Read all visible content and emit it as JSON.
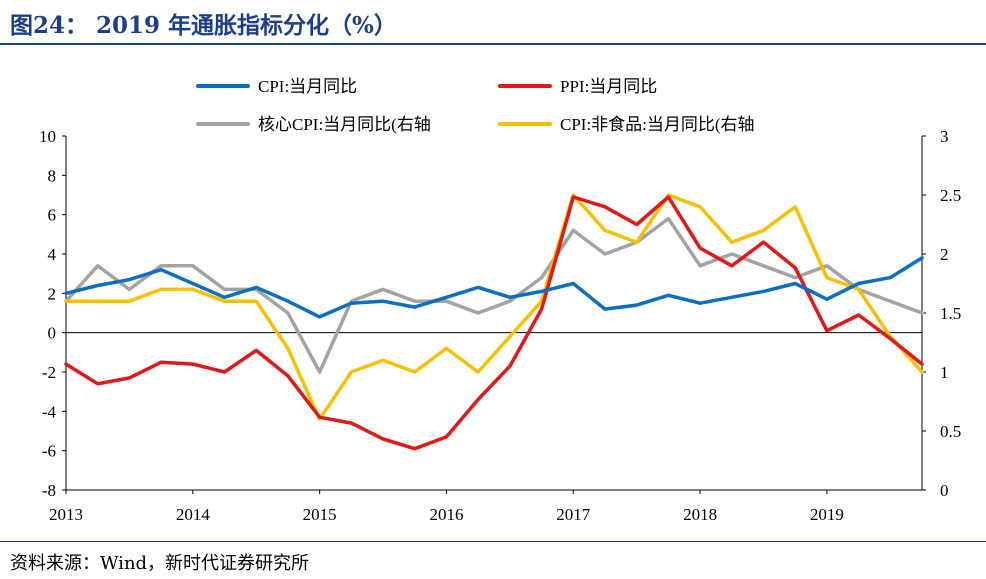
{
  "title": "图24： 2019 年通胀指标分化（%）",
  "source": "资料来源：Wind，新时代证券研究所",
  "colors": {
    "cpi": "#0a6fc2",
    "ppi": "#e31717",
    "core_cpi": "#a3a3a3",
    "cpi_nonfood": "#f8c000",
    "title": "#1d3f8a"
  },
  "chart_data": {
    "type": "line",
    "x_ticks": [
      "2013",
      "2014",
      "2015",
      "2016",
      "2017",
      "2018",
      "2019"
    ],
    "xlim": [
      "2013-01",
      "2019-10"
    ],
    "y_left": {
      "lim": [
        -8,
        10
      ],
      "ticks": [
        "-8",
        "-6",
        "-4",
        "-2",
        "0",
        "2",
        "4",
        "6",
        "8",
        "10"
      ]
    },
    "y_right": {
      "lim": [
        0,
        3
      ],
      "ticks": [
        "0",
        "0.5",
        "1",
        "1.5",
        "2",
        "2.5",
        "3"
      ]
    },
    "legend_position": "top",
    "series": [
      {
        "name": "CPI:当月同比",
        "axis": "left",
        "color_key": "cpi",
        "x": [
          "2013-01",
          "2013-04",
          "2013-07",
          "2013-10",
          "2014-01",
          "2014-04",
          "2014-07",
          "2014-10",
          "2015-01",
          "2015-04",
          "2015-07",
          "2015-10",
          "2016-01",
          "2016-04",
          "2016-07",
          "2016-10",
          "2017-01",
          "2017-04",
          "2017-07",
          "2017-10",
          "2018-01",
          "2018-04",
          "2018-07",
          "2018-10",
          "2019-01",
          "2019-04",
          "2019-07",
          "2019-10"
        ],
        "values": [
          2.0,
          2.4,
          2.7,
          3.2,
          2.5,
          1.8,
          2.3,
          1.6,
          0.8,
          1.5,
          1.6,
          1.3,
          1.8,
          2.3,
          1.8,
          2.1,
          2.5,
          1.2,
          1.4,
          1.9,
          1.5,
          1.8,
          2.1,
          2.5,
          1.7,
          2.5,
          2.8,
          3.8
        ]
      },
      {
        "name": "PPI:当月同比",
        "axis": "left",
        "color_key": "ppi",
        "x": [
          "2013-01",
          "2013-04",
          "2013-07",
          "2013-10",
          "2014-01",
          "2014-04",
          "2014-07",
          "2014-10",
          "2015-01",
          "2015-04",
          "2015-07",
          "2015-10",
          "2016-01",
          "2016-04",
          "2016-07",
          "2016-10",
          "2017-01",
          "2017-04",
          "2017-07",
          "2017-10",
          "2018-01",
          "2018-04",
          "2018-07",
          "2018-10",
          "2019-01",
          "2019-04",
          "2019-07",
          "2019-10"
        ],
        "values": [
          -1.6,
          -2.6,
          -2.3,
          -1.5,
          -1.6,
          -2.0,
          -0.9,
          -2.2,
          -4.3,
          -4.6,
          -5.4,
          -5.9,
          -5.3,
          -3.4,
          -1.7,
          1.2,
          6.9,
          6.4,
          5.5,
          6.9,
          4.3,
          3.4,
          4.6,
          3.3,
          0.1,
          0.9,
          -0.3,
          -1.6
        ]
      },
      {
        "name": "核心CPI:当月同比(右轴",
        "axis": "right",
        "color_key": "core_cpi",
        "x": [
          "2013-01",
          "2013-04",
          "2013-07",
          "2013-10",
          "2014-01",
          "2014-04",
          "2014-07",
          "2014-10",
          "2015-01",
          "2015-04",
          "2015-07",
          "2015-10",
          "2016-01",
          "2016-04",
          "2016-07",
          "2016-10",
          "2017-01",
          "2017-04",
          "2017-07",
          "2017-10",
          "2018-01",
          "2018-04",
          "2018-07",
          "2018-10",
          "2019-01",
          "2019-04",
          "2019-07",
          "2019-10"
        ],
        "values": [
          1.6,
          1.9,
          1.7,
          1.9,
          1.9,
          1.7,
          1.7,
          1.5,
          1.0,
          1.6,
          1.7,
          1.6,
          1.6,
          1.5,
          1.6,
          1.8,
          2.2,
          2.0,
          2.1,
          2.3,
          1.9,
          2.0,
          1.9,
          1.8,
          1.9,
          1.7,
          1.6,
          1.5
        ]
      },
      {
        "name": "CPI:非食品:当月同比(右轴",
        "axis": "right",
        "color_key": "cpi_nonfood",
        "x": [
          "2013-01",
          "2013-04",
          "2013-07",
          "2013-10",
          "2014-01",
          "2014-04",
          "2014-07",
          "2014-10",
          "2015-01",
          "2015-04",
          "2015-07",
          "2015-10",
          "2016-01",
          "2016-04",
          "2016-07",
          "2016-10",
          "2017-01",
          "2017-04",
          "2017-07",
          "2017-10",
          "2018-01",
          "2018-04",
          "2018-07",
          "2018-10",
          "2019-01",
          "2019-04",
          "2019-07",
          "2019-10"
        ],
        "values": [
          1.6,
          1.6,
          1.6,
          1.7,
          1.7,
          1.6,
          1.6,
          1.2,
          0.6,
          1.0,
          1.1,
          1.0,
          1.2,
          1.0,
          1.3,
          1.6,
          2.5,
          2.2,
          2.1,
          2.5,
          2.4,
          2.1,
          2.2,
          2.4,
          1.8,
          1.7,
          1.3,
          1.0
        ]
      }
    ]
  }
}
